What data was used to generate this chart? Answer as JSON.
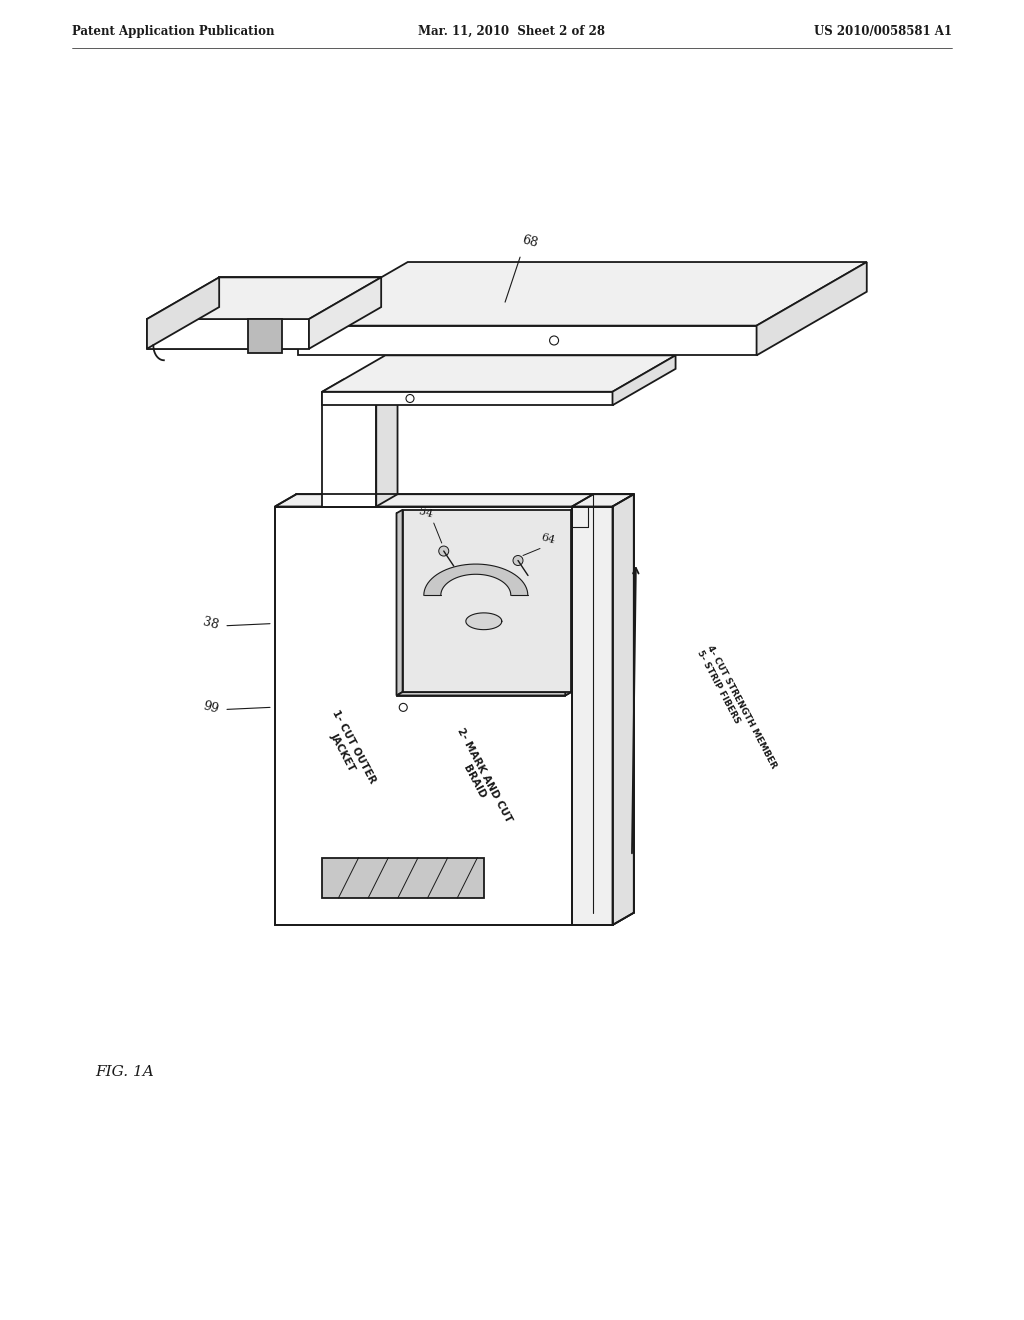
{
  "bg_color": "#ffffff",
  "header_left": "Patent Application Publication",
  "header_center": "Mar. 11, 2010  Sheet 2 of 28",
  "header_right": "US 2010/0058581 A1",
  "fig_label": "FIG. 1A",
  "line_color": "#1a1a1a",
  "face_white": "#ffffff",
  "face_light": "#f0f0f0",
  "face_mid": "#e0e0e0",
  "face_dark": "#c8c8c8",
  "face_cavity": "#d8d8d8",
  "label1": "1- CUT OUTER\nJACKET",
  "label2": "2- MARK AND CUT\nBRAID",
  "label3": "4- CUT STRENGTH MEMBER\n5- STRIP FIBERS",
  "ref_68": "68",
  "ref_38": "38",
  "ref_99": "99",
  "ref_54": "54",
  "ref_64": "64"
}
